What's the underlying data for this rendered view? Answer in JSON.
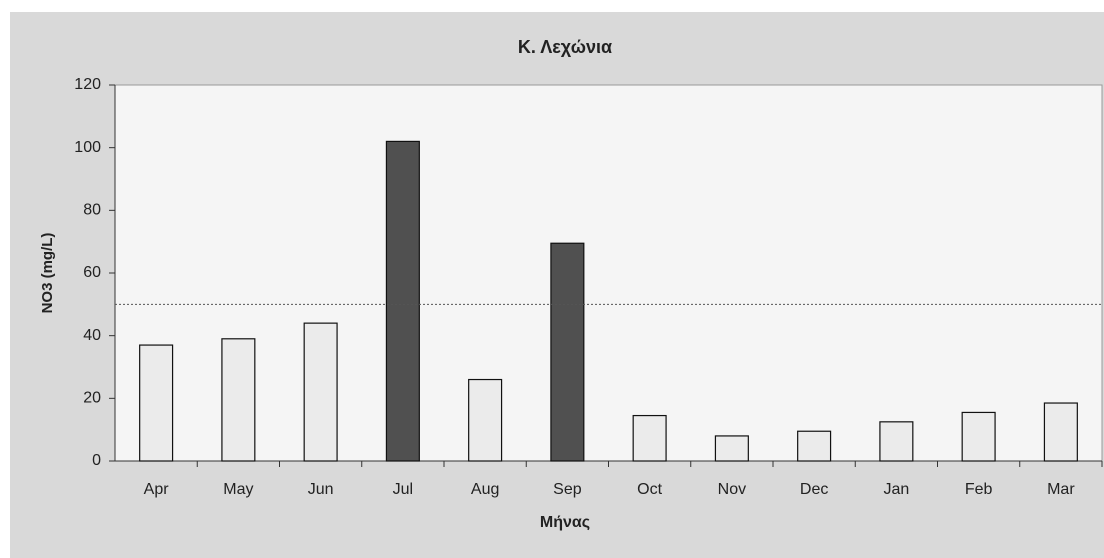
{
  "chart_data": {
    "type": "bar",
    "title": "Κ. Λεχώνια",
    "x_label": "Μήνας",
    "y_label": "NO3 (mg/L)",
    "categories": [
      "Apr",
      "May",
      "Jun",
      "Jul",
      "Aug",
      "Sep",
      "Oct",
      "Nov",
      "Dec",
      "Jan",
      "Feb",
      "Mar"
    ],
    "values": [
      37,
      39,
      44,
      102,
      26,
      69.5,
      14.5,
      8,
      9.5,
      12.5,
      15.5,
      18.5
    ],
    "colors": [
      "#ebebeb",
      "#ebebeb",
      "#ebebeb",
      "#505050",
      "#ebebeb",
      "#505050",
      "#ebebeb",
      "#ebebeb",
      "#ebebeb",
      "#ebebeb",
      "#ebebeb",
      "#ebebeb"
    ],
    "threshold": 50,
    "ylim": [
      0,
      120
    ],
    "yticks": [
      0,
      20,
      40,
      60,
      80,
      100,
      120
    ],
    "grid": false
  }
}
